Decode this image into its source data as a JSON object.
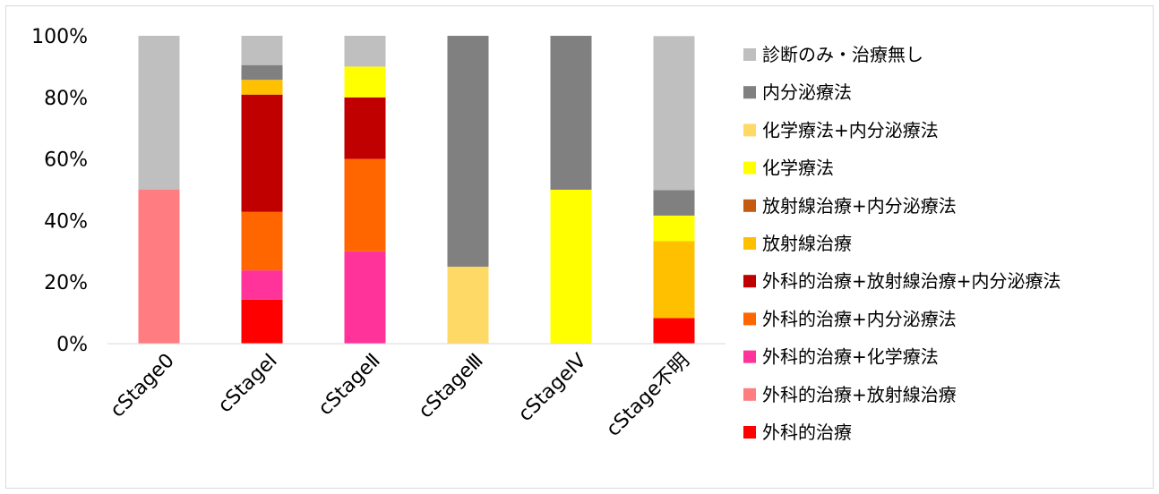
{
  "chart_data": {
    "type": "bar",
    "stacked": true,
    "percent": true,
    "categories": [
      "cStage0",
      "cStageⅠ",
      "cStageⅡ",
      "cStageⅢ",
      "cStageⅣ",
      "cStage不明"
    ],
    "ylim": [
      0,
      100
    ],
    "yticks": [
      "0%",
      "20%",
      "40%",
      "60%",
      "80%",
      "100%"
    ],
    "grid": false,
    "legend": "right",
    "series": [
      {
        "name": "外科的治療",
        "color": "#ff0000",
        "values": [
          0,
          14.3,
          0,
          0,
          0,
          8.3
        ]
      },
      {
        "name": "外科的治療+放射線治療",
        "color": "#ff7c80",
        "values": [
          50,
          0,
          0,
          0,
          0,
          0
        ]
      },
      {
        "name": "外科的治療+化学療法",
        "color": "#ff3399",
        "values": [
          0,
          9.5,
          30,
          0,
          0,
          0
        ]
      },
      {
        "name": "外科的治療+内分泌療法",
        "color": "#ff6600",
        "values": [
          0,
          19.0,
          30,
          0,
          0,
          0
        ]
      },
      {
        "name": "外科的治療+放射線治療+内分泌療法",
        "color": "#c00000",
        "values": [
          0,
          38.1,
          20,
          0,
          0,
          0
        ]
      },
      {
        "name": "放射線治療",
        "color": "#ffc000",
        "values": [
          0,
          4.8,
          0,
          0,
          0,
          25
        ]
      },
      {
        "name": "放射線治療+内分泌療法",
        "color": "#c55a11",
        "values": [
          0,
          0,
          0,
          0,
          0,
          0
        ]
      },
      {
        "name": "化学療法",
        "color": "#ffff00",
        "values": [
          0,
          0,
          10,
          0,
          50,
          8.3
        ]
      },
      {
        "name": "化学療法+内分泌療法",
        "color": "#ffd966",
        "values": [
          0,
          0,
          0,
          25,
          0,
          0
        ]
      },
      {
        "name": "内分泌療法",
        "color": "#808080",
        "values": [
          0,
          4.8,
          0,
          75,
          50,
          8.3
        ]
      },
      {
        "name": "診断のみ・治療無し",
        "color": "#bfbfbf",
        "values": [
          50,
          9.5,
          10,
          0,
          0,
          50
        ]
      }
    ]
  }
}
